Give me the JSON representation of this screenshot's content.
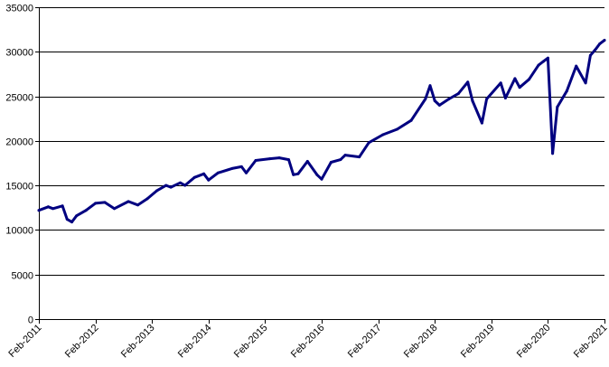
{
  "chart_data": {
    "type": "line",
    "title": "",
    "xlabel": "",
    "ylabel": "",
    "ylim": [
      0,
      35000
    ],
    "y_ticks": [
      0,
      5000,
      10000,
      15000,
      20000,
      25000,
      30000,
      35000
    ],
    "y_tick_labels": [
      "0",
      "5000",
      "10000",
      "15000",
      "20000",
      "25000",
      "30000",
      "35000"
    ],
    "x_tick_labels": [
      "Feb-2011",
      "Feb-2012",
      "Feb-2013",
      "Feb-2014",
      "Feb-2015",
      "Feb-2016",
      "Feb-2017",
      "Feb-2018",
      "Feb-2019",
      "Feb-2020",
      "Feb-2021"
    ],
    "xlim": [
      "Feb-2011",
      "Feb-2021"
    ],
    "grid": "horizontal",
    "legend": "none",
    "line_color": "#000080",
    "series": [
      {
        "x": [
          "2011-02",
          "2011-04",
          "2011-05",
          "2011-07",
          "2011-08",
          "2011-09",
          "2011-10",
          "2011-12",
          "2012-02",
          "2012-04",
          "2012-06",
          "2012-09",
          "2012-11",
          "2013-01",
          "2013-03",
          "2013-05",
          "2013-06",
          "2013-08",
          "2013-09",
          "2013-11",
          "2014-01",
          "2014-02",
          "2014-04",
          "2014-07",
          "2014-09",
          "2014-10",
          "2014-12",
          "2015-03",
          "2015-05",
          "2015-07",
          "2015-08",
          "2015-09",
          "2015-11",
          "2016-01",
          "2016-02",
          "2016-04",
          "2016-06",
          "2016-07",
          "2016-10",
          "2016-12",
          "2017-03",
          "2017-06",
          "2017-09",
          "2017-12",
          "2018-01",
          "2018-02",
          "2018-03",
          "2018-05",
          "2018-07",
          "2018-09",
          "2018-10",
          "2018-12",
          "2019-01",
          "2019-04",
          "2019-05",
          "2019-07",
          "2019-08",
          "2019-10",
          "2019-12",
          "2020-01",
          "2020-02",
          "2020-03",
          "2020-04",
          "2020-06",
          "2020-08",
          "2020-10",
          "2020-11",
          "2020-12",
          "2021-01",
          "2021-02"
        ],
        "values": [
          12200,
          12600,
          12400,
          12700,
          11200,
          10900,
          11600,
          12200,
          13000,
          13100,
          12400,
          13200,
          12800,
          13500,
          14400,
          15000,
          14800,
          15300,
          15000,
          15900,
          16300,
          15600,
          16400,
          16900,
          17100,
          16400,
          17800,
          18000,
          18100,
          17900,
          16200,
          16300,
          17700,
          16200,
          15700,
          17600,
          17900,
          18400,
          18200,
          19800,
          20700,
          21300,
          22300,
          24700,
          26200,
          24500,
          24000,
          24700,
          25300,
          26600,
          24500,
          22000,
          24700,
          26500,
          24800,
          27000,
          26000,
          26900,
          28500,
          28900,
          29300,
          18600,
          23800,
          25600,
          28400,
          26500,
          29600,
          30200,
          30900,
          31300
        ]
      }
    ]
  }
}
